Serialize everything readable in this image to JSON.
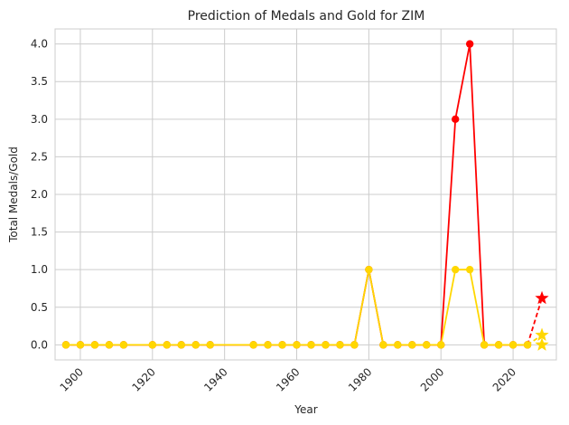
{
  "chart_data": {
    "type": "line",
    "title": "Prediction of Medals and Gold for ZIM",
    "xlabel": "Year",
    "ylabel": "Total Medals/Gold",
    "xlim": [
      1893,
      2032
    ],
    "ylim": [
      -0.2,
      4.2
    ],
    "grid": true,
    "x_ticks": [
      1900,
      1920,
      1940,
      1960,
      1980,
      2000,
      2020
    ],
    "y_ticks": [
      0.0,
      0.5,
      1.0,
      1.5,
      2.0,
      2.5,
      3.0,
      3.5,
      4.0
    ],
    "x_tick_rotation": 45,
    "series": [
      {
        "color": "#ff0000",
        "marker": "circle",
        "points": [
          [
            1896,
            0
          ],
          [
            1900,
            0
          ],
          [
            1904,
            0
          ],
          [
            1908,
            0
          ],
          [
            1912,
            0
          ],
          [
            1920,
            0
          ],
          [
            1924,
            0
          ],
          [
            1928,
            0
          ],
          [
            1932,
            0
          ],
          [
            1936,
            0
          ],
          [
            1948,
            0
          ],
          [
            1952,
            0
          ],
          [
            1956,
            0
          ],
          [
            1960,
            0
          ],
          [
            1964,
            0
          ],
          [
            1968,
            0
          ],
          [
            1972,
            0
          ],
          [
            1976,
            0
          ],
          [
            1980,
            1
          ],
          [
            1984,
            0
          ],
          [
            1988,
            0
          ],
          [
            1992,
            0
          ],
          [
            1996,
            0
          ],
          [
            2000,
            0
          ],
          [
            2004,
            3
          ],
          [
            2008,
            4
          ],
          [
            2012,
            0
          ],
          [
            2016,
            0
          ],
          [
            2020,
            0
          ],
          [
            2024,
            0
          ]
        ],
        "prediction": {
          "from": [
            2024,
            0
          ],
          "to": [
            2028,
            0.62
          ],
          "color": "#ff0000",
          "marker": "star",
          "dashed": true
        }
      },
      {
        "color": "#ffd700",
        "marker": "circle",
        "points": [
          [
            1896,
            0
          ],
          [
            1900,
            0
          ],
          [
            1904,
            0
          ],
          [
            1908,
            0
          ],
          [
            1912,
            0
          ],
          [
            1920,
            0
          ],
          [
            1924,
            0
          ],
          [
            1928,
            0
          ],
          [
            1932,
            0
          ],
          [
            1936,
            0
          ],
          [
            1948,
            0
          ],
          [
            1952,
            0
          ],
          [
            1956,
            0
          ],
          [
            1960,
            0
          ],
          [
            1964,
            0
          ],
          [
            1968,
            0
          ],
          [
            1972,
            0
          ],
          [
            1976,
            0
          ],
          [
            1980,
            1
          ],
          [
            1984,
            0
          ],
          [
            1988,
            0
          ],
          [
            1992,
            0
          ],
          [
            1996,
            0
          ],
          [
            2000,
            0
          ],
          [
            2004,
            1
          ],
          [
            2008,
            1
          ],
          [
            2012,
            0
          ],
          [
            2016,
            0
          ],
          [
            2020,
            0
          ],
          [
            2024,
            0
          ]
        ],
        "prediction": {
          "from": [
            2024,
            0
          ],
          "to": [
            2028,
            0.13
          ],
          "color": "#ffd700",
          "marker": "star",
          "dashed": true
        },
        "extra_points": [
          {
            "x": 2028,
            "y": 0.0,
            "marker": "star",
            "color": "#ffd700"
          }
        ]
      }
    ]
  }
}
